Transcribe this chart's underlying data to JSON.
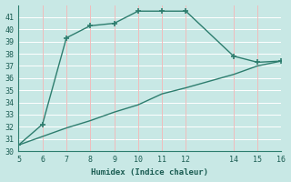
{
  "xlabel": "Humidex (Indice chaleur)",
  "line1_x": [
    5,
    6,
    7,
    8,
    9,
    10,
    11,
    12,
    14,
    15,
    16
  ],
  "line1_y": [
    30.5,
    32.2,
    39.3,
    40.3,
    40.5,
    41.5,
    41.5,
    41.5,
    37.8,
    37.3,
    37.4
  ],
  "line2_x": [
    5,
    6,
    7,
    8,
    9,
    10,
    11,
    12,
    14,
    15,
    16
  ],
  "line2_y": [
    30.5,
    31.2,
    31.9,
    32.5,
    33.2,
    33.8,
    34.7,
    35.2,
    36.3,
    37.0,
    37.4
  ],
  "line_color": "#2d7d6e",
  "bg_color": "#c8e8e5",
  "major_hgrid_color": "#ffffff",
  "minor_vgrid_color": "#f0bcbc",
  "xlim": [
    5,
    16
  ],
  "ylim": [
    30,
    42
  ],
  "xticks": [
    5,
    6,
    7,
    8,
    9,
    10,
    11,
    12,
    14,
    15,
    16
  ],
  "yticks": [
    30,
    31,
    32,
    33,
    34,
    35,
    36,
    37,
    38,
    39,
    40,
    41
  ],
  "marker": "+",
  "markersize": 5,
  "linewidth": 1.0
}
